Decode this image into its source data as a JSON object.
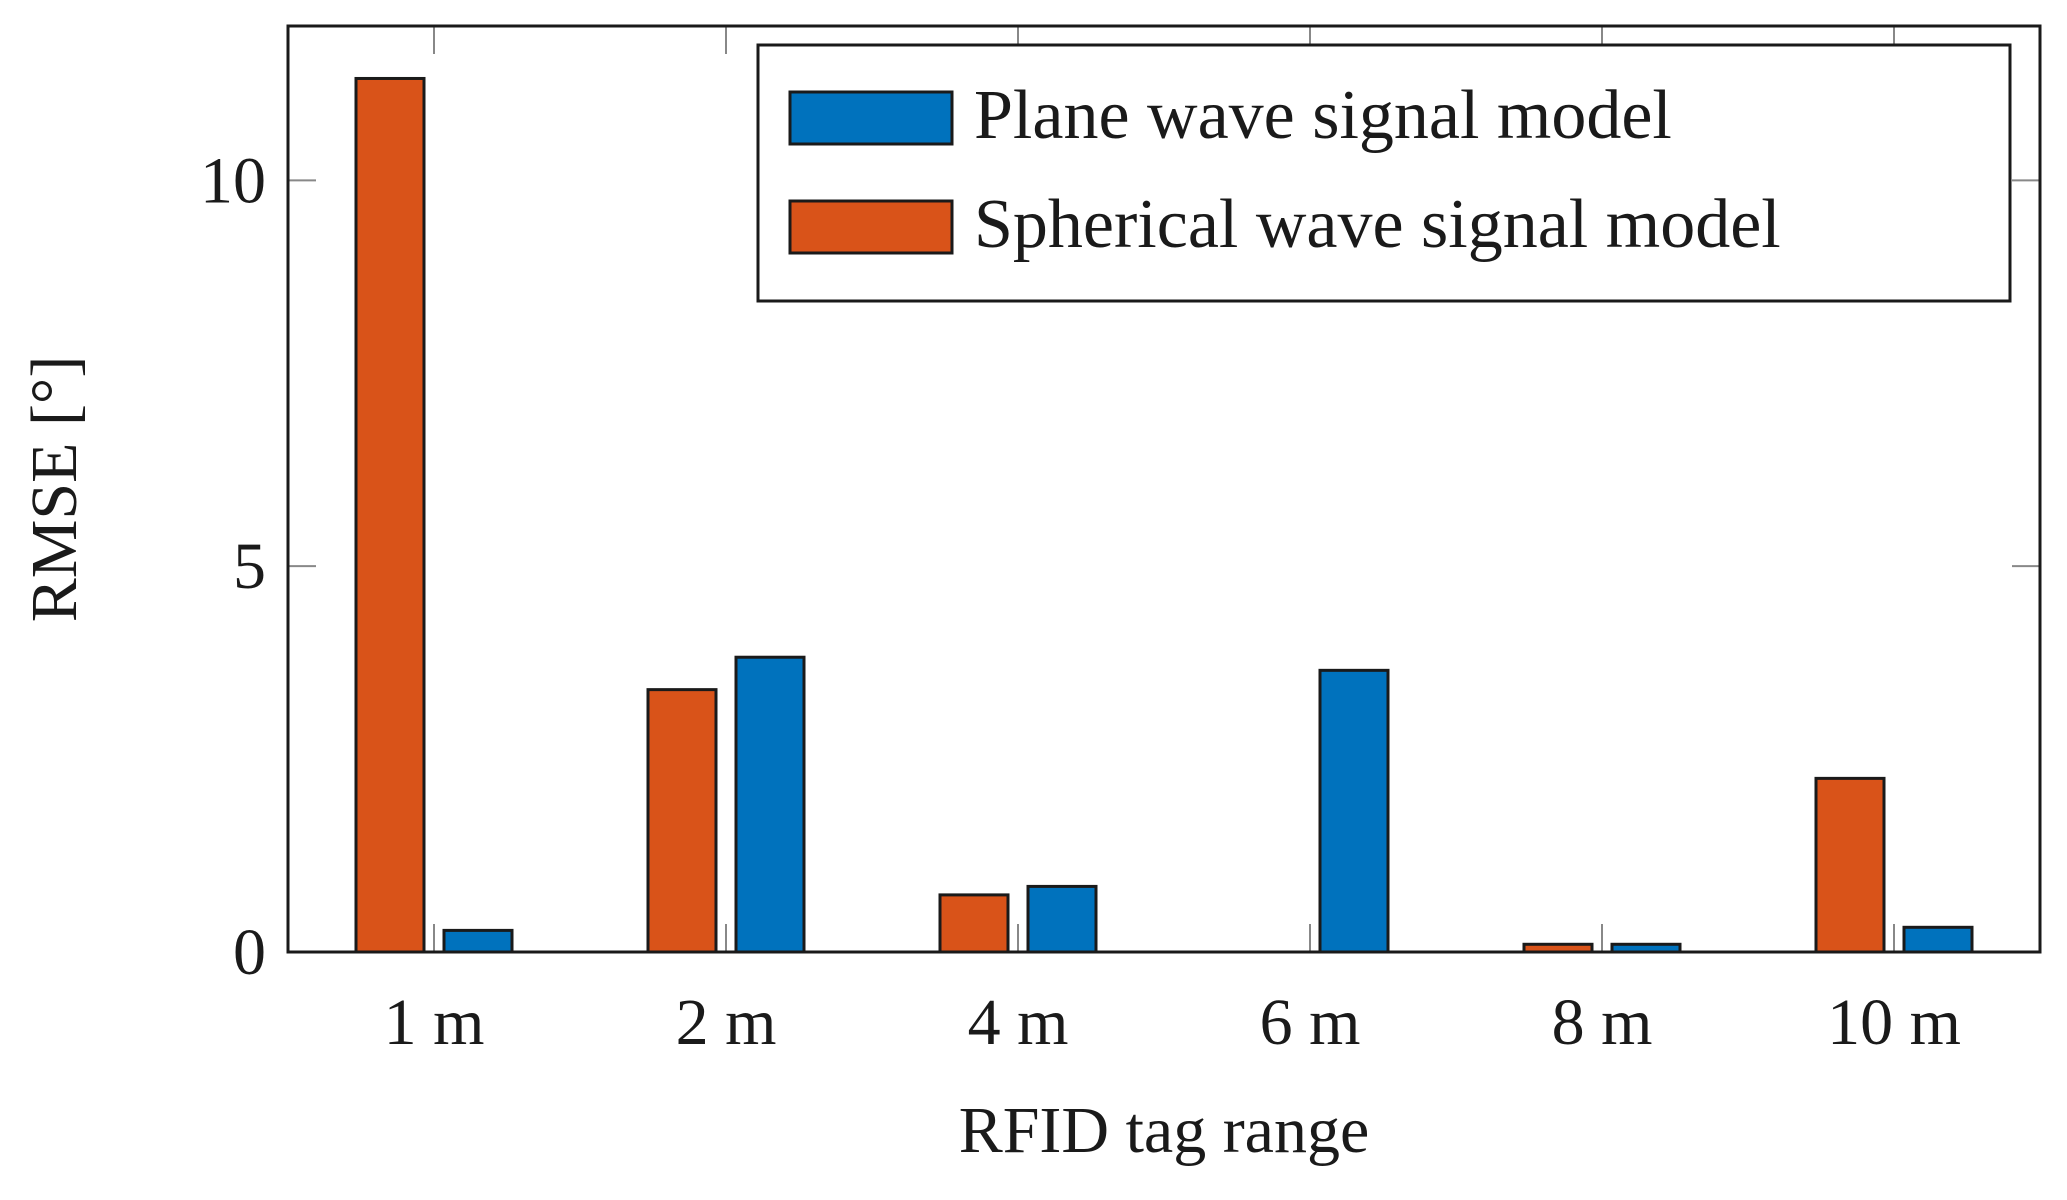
{
  "chart_data": {
    "type": "bar",
    "title": "",
    "xlabel": "RFID tag range",
    "ylabel": "RMSE [°]",
    "categories": [
      "1 m",
      "2 m",
      "4 m",
      "6 m",
      "8 m",
      "10 m"
    ],
    "ylim": [
      0,
      12
    ],
    "yticks": [
      0,
      5,
      10
    ],
    "grid": false,
    "legend_position": "top-right",
    "series": [
      {
        "name": "Plane wave signal model",
        "color": "#0072BD",
        "values": [
          0.28,
          3.82,
          0.85,
          3.65,
          0.1,
          0.32
        ]
      },
      {
        "name": "Spherical wave signal model",
        "color": "#D95319",
        "values": [
          11.32,
          3.4,
          0.74,
          0.0,
          0.1,
          2.25
        ]
      }
    ]
  }
}
